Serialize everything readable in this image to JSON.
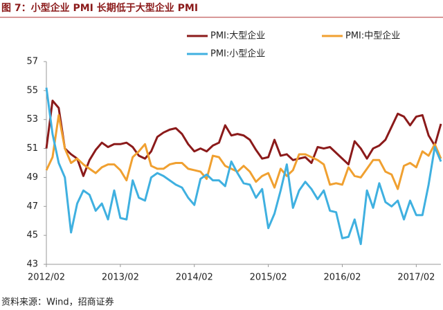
{
  "chart_data": {
    "type": "line",
    "title": "图 7：小型企业 PMI 长期低于大型企业 PMI",
    "source": "资料来源：Wind，招商证券",
    "categories": [
      "2012/02",
      null,
      null,
      null,
      null,
      null,
      null,
      null,
      null,
      null,
      null,
      null,
      "2013/02",
      null,
      null,
      null,
      null,
      null,
      null,
      null,
      null,
      null,
      null,
      null,
      "2014/02",
      null,
      null,
      null,
      null,
      null,
      null,
      null,
      null,
      null,
      null,
      null,
      "2015/02",
      null,
      null,
      null,
      null,
      null,
      null,
      null,
      null,
      null,
      null,
      null,
      "2016/02",
      null,
      null,
      null,
      null,
      null,
      null,
      null,
      null,
      null,
      null,
      null,
      "2017/02",
      null,
      null,
      null,
      null
    ],
    "ylim": [
      43,
      57
    ],
    "yticks": [
      43,
      45,
      47,
      49,
      51,
      53,
      55,
      57
    ],
    "grid": false,
    "series": [
      {
        "name": "PMI:大型企业",
        "color": "#8b1a1a",
        "values": [
          51.0,
          54.3,
          53.8,
          51.0,
          50.6,
          50.3,
          49.1,
          50.2,
          50.9,
          51.4,
          51.1,
          51.3,
          51.3,
          51.4,
          51.1,
          50.5,
          50.3,
          50.8,
          51.8,
          52.1,
          52.3,
          52.4,
          52.0,
          51.3,
          50.8,
          51.0,
          50.8,
          51.2,
          51.4,
          52.6,
          51.9,
          52.0,
          51.9,
          51.6,
          50.9,
          50.3,
          50.4,
          51.6,
          50.5,
          50.6,
          50.2,
          50.3,
          50.4,
          50.0,
          51.1,
          51.0,
          51.1,
          50.7,
          50.3,
          49.9,
          51.5,
          51.0,
          50.3,
          51.0,
          51.2,
          51.6,
          52.5,
          53.4,
          53.2,
          52.6,
          53.2,
          53.3,
          51.9,
          51.2,
          52.7
        ]
      },
      {
        "name": "PMI:中型企业",
        "color": "#f0a030",
        "values": [
          49.5,
          50.4,
          53.3,
          51.0,
          50.0,
          50.3,
          49.9,
          49.6,
          49.3,
          49.7,
          49.9,
          49.9,
          49.5,
          48.8,
          50.4,
          50.8,
          51.3,
          49.8,
          49.6,
          49.6,
          49.9,
          50.0,
          50.0,
          49.6,
          49.5,
          49.4,
          48.9,
          50.5,
          50.4,
          49.8,
          49.6,
          49.4,
          49.8,
          49.4,
          48.7,
          49.1,
          49.3,
          48.3,
          49.6,
          49.1,
          49.5,
          50.6,
          50.6,
          50.4,
          50.2,
          49.9,
          48.5,
          48.6,
          48.5,
          49.7,
          49.1,
          49.0,
          49.6,
          50.2,
          50.2,
          49.4,
          49.2,
          48.2,
          49.8,
          50.0,
          49.7,
          50.8,
          50.5,
          51.3,
          50.3
        ]
      },
      {
        "name": "PMI:小型企业",
        "color": "#3fb0e0",
        "values": [
          55.2,
          52.0,
          50.0,
          49.0,
          45.2,
          47.2,
          48.1,
          47.8,
          46.7,
          47.2,
          46.1,
          48.1,
          46.2,
          46.1,
          48.8,
          47.6,
          47.4,
          49.0,
          49.3,
          49.1,
          48.8,
          48.5,
          48.3,
          47.6,
          47.1,
          48.9,
          49.2,
          48.8,
          48.8,
          48.4,
          50.1,
          49.3,
          48.6,
          48.5,
          47.6,
          48.2,
          45.5,
          46.5,
          48.1,
          49.9,
          46.9,
          48.1,
          48.7,
          48.2,
          47.5,
          48.1,
          46.7,
          46.6,
          44.8,
          44.9,
          46.1,
          44.4,
          48.1,
          46.9,
          48.6,
          47.3,
          47.0,
          47.4,
          46.1,
          47.4,
          46.4,
          46.4,
          48.5,
          51.1,
          50.1
        ]
      }
    ]
  }
}
